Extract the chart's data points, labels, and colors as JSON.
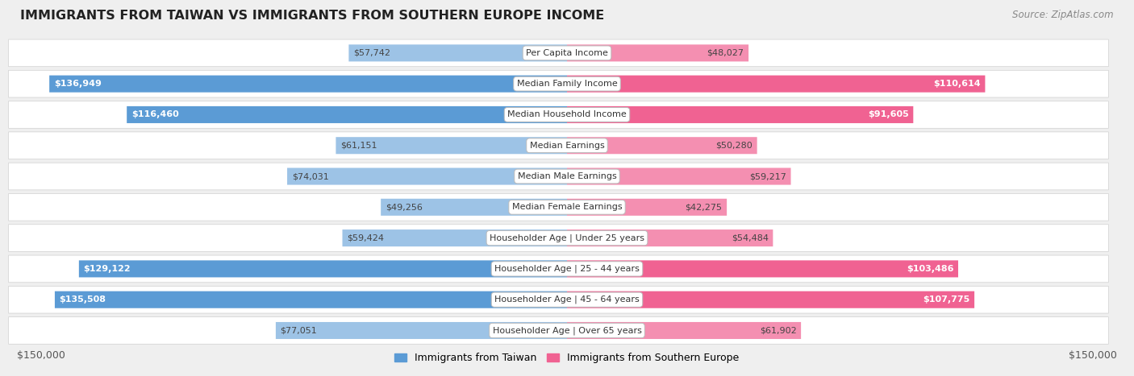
{
  "title": "IMMIGRANTS FROM TAIWAN VS IMMIGRANTS FROM SOUTHERN EUROPE INCOME",
  "source": "Source: ZipAtlas.com",
  "categories": [
    "Per Capita Income",
    "Median Family Income",
    "Median Household Income",
    "Median Earnings",
    "Median Male Earnings",
    "Median Female Earnings",
    "Householder Age | Under 25 years",
    "Householder Age | 25 - 44 years",
    "Householder Age | 45 - 64 years",
    "Householder Age | Over 65 years"
  ],
  "taiwan_values": [
    57742,
    136949,
    116460,
    61151,
    74031,
    49256,
    59424,
    129122,
    135508,
    77051
  ],
  "southern_europe_values": [
    48027,
    110614,
    91605,
    50280,
    59217,
    42275,
    54484,
    103486,
    107775,
    61902
  ],
  "taiwan_labels": [
    "$57,742",
    "$136,949",
    "$116,460",
    "$61,151",
    "$74,031",
    "$49,256",
    "$59,424",
    "$129,122",
    "$135,508",
    "$77,051"
  ],
  "southern_europe_labels": [
    "$48,027",
    "$110,614",
    "$91,605",
    "$50,280",
    "$59,217",
    "$42,275",
    "$54,484",
    "$103,486",
    "$107,775",
    "$61,902"
  ],
  "taiwan_color_full": "#5b9bd5",
  "taiwan_color_light": "#9dc3e6",
  "southern_europe_color_full": "#f06292",
  "southern_europe_color_light": "#f48fb1",
  "max_value": 150000,
  "background_color": "#efefef",
  "row_bg_color": "#ffffff",
  "legend_taiwan": "Immigrants from Taiwan",
  "legend_southern_europe": "Immigrants from Southern Europe",
  "xlabel_left": "$150,000",
  "xlabel_right": "$150,000",
  "full_bar_threshold": 90000
}
